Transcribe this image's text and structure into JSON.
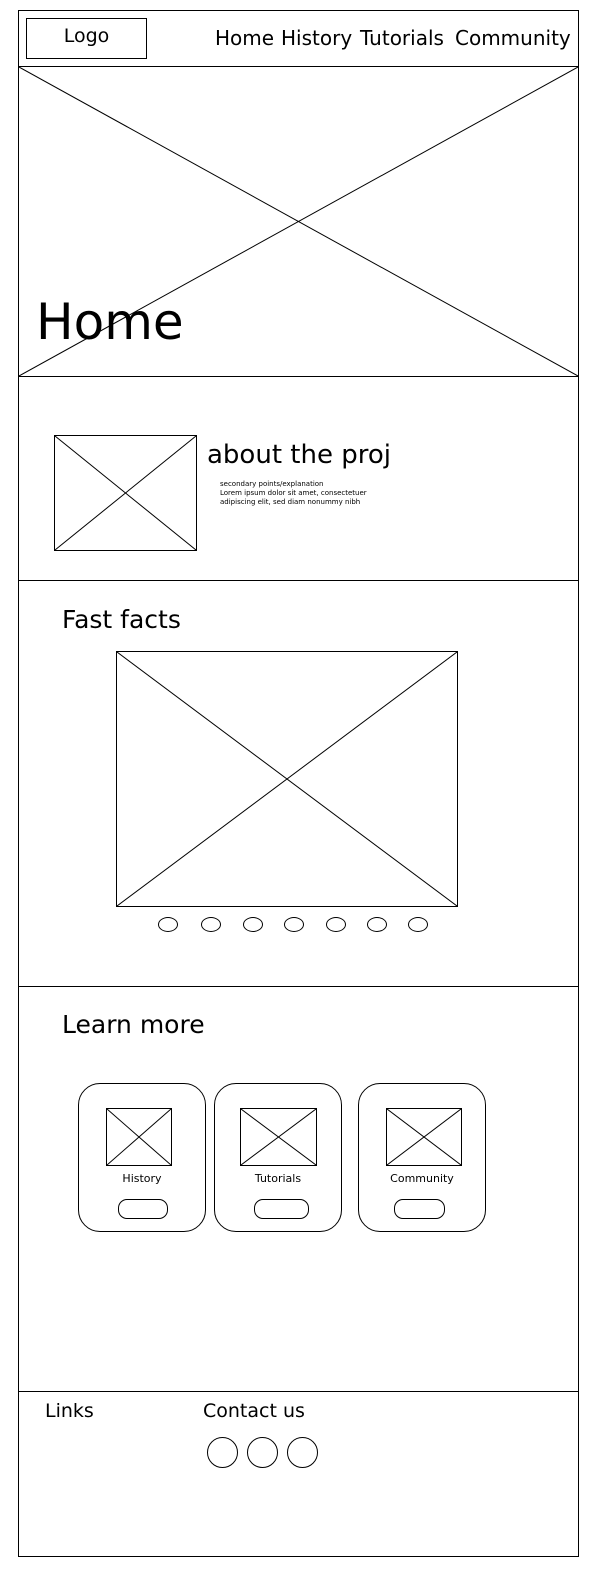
{
  "header": {
    "logo": "Logo",
    "nav": [
      "Home",
      "History",
      "Tutorials",
      "Community"
    ]
  },
  "hero": {
    "title": "Home",
    "image": "image-placeholder"
  },
  "about": {
    "title": "about the proj",
    "subtitle": "secondary points/explanation",
    "body": "Lorem ipsum dolor sit amet, consectetuer adipiscing elit, sed diam nonummy nibh"
  },
  "fast_facts": {
    "title": "Fast facts",
    "carousel_dots": 7
  },
  "learn_more": {
    "title": "Learn more",
    "cards": [
      {
        "label": "History"
      },
      {
        "label": "Tutorials"
      },
      {
        "label": "Community"
      }
    ]
  },
  "footer": {
    "links_label": "Links",
    "contact_label": "Contact us",
    "social_icons": 3
  }
}
